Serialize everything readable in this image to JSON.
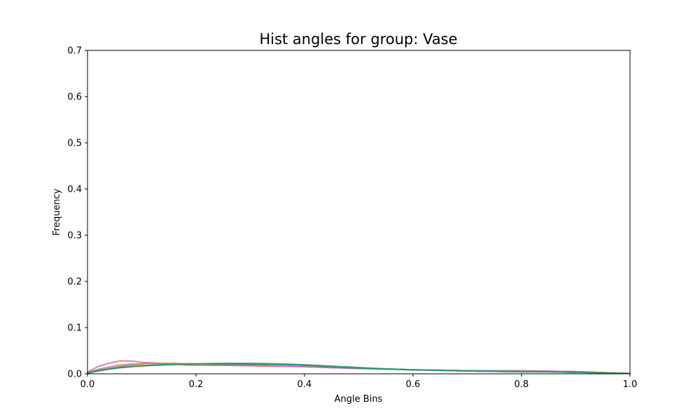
{
  "chart_data": {
    "type": "line",
    "title": "Hist angles for group: Vase",
    "xlabel": "Angle Bins",
    "ylabel": "Frequency",
    "xlim": [
      0.0,
      1.0
    ],
    "ylim": [
      0.0,
      0.7
    ],
    "xticks": [
      "0.0",
      "0.2",
      "0.4",
      "0.6",
      "0.8",
      "1.0"
    ],
    "yticks": [
      "0.0",
      "0.1",
      "0.2",
      "0.3",
      "0.4",
      "0.5",
      "0.6",
      "0.7"
    ],
    "grid": false,
    "x": [
      0.0,
      0.02,
      0.04,
      0.06,
      0.08,
      0.1,
      0.12,
      0.14,
      0.16,
      0.18,
      0.2,
      0.25,
      0.3,
      0.35,
      0.4,
      0.45,
      0.5,
      0.55,
      0.6,
      0.65,
      0.7,
      0.75,
      0.8,
      0.85,
      0.9,
      0.95,
      1.0
    ],
    "series": [
      {
        "color": "#e07080",
        "values": [
          0.004,
          0.016,
          0.023,
          0.028,
          0.028,
          0.025,
          0.024,
          0.023,
          0.021,
          0.019,
          0.018,
          0.018,
          0.017,
          0.016,
          0.015,
          0.013,
          0.012,
          0.01,
          0.009,
          0.008,
          0.007,
          0.007,
          0.007,
          0.006,
          0.005,
          0.003,
          0.001
        ]
      },
      {
        "color": "#c66fd6",
        "values": [
          0.003,
          0.01,
          0.015,
          0.019,
          0.021,
          0.022,
          0.022,
          0.022,
          0.021,
          0.021,
          0.021,
          0.02,
          0.019,
          0.017,
          0.015,
          0.013,
          0.011,
          0.01,
          0.009,
          0.008,
          0.007,
          0.007,
          0.007,
          0.006,
          0.005,
          0.003,
          0.001
        ]
      },
      {
        "color": "#c0a030",
        "values": [
          0.002,
          0.008,
          0.012,
          0.016,
          0.019,
          0.021,
          0.023,
          0.023,
          0.023,
          0.022,
          0.022,
          0.022,
          0.022,
          0.021,
          0.018,
          0.015,
          0.013,
          0.011,
          0.009,
          0.008,
          0.007,
          0.006,
          0.006,
          0.005,
          0.004,
          0.003,
          0.001
        ]
      },
      {
        "color": "#6aa84f",
        "values": [
          0.002,
          0.007,
          0.011,
          0.014,
          0.016,
          0.018,
          0.019,
          0.02,
          0.021,
          0.022,
          0.022,
          0.023,
          0.023,
          0.022,
          0.02,
          0.017,
          0.014,
          0.011,
          0.009,
          0.007,
          0.006,
          0.005,
          0.005,
          0.004,
          0.003,
          0.002,
          0.001
        ]
      },
      {
        "color": "#3aa58a",
        "values": [
          0.002,
          0.006,
          0.01,
          0.013,
          0.015,
          0.017,
          0.018,
          0.019,
          0.02,
          0.021,
          0.021,
          0.022,
          0.022,
          0.021,
          0.019,
          0.016,
          0.013,
          0.011,
          0.009,
          0.007,
          0.006,
          0.005,
          0.004,
          0.004,
          0.003,
          0.002,
          0.001
        ]
      },
      {
        "color": "#2f9fb0",
        "values": [
          0.002,
          0.007,
          0.011,
          0.014,
          0.016,
          0.018,
          0.019,
          0.02,
          0.02,
          0.021,
          0.021,
          0.021,
          0.021,
          0.02,
          0.018,
          0.016,
          0.013,
          0.011,
          0.009,
          0.008,
          0.007,
          0.006,
          0.005,
          0.005,
          0.004,
          0.002,
          0.001
        ]
      },
      {
        "color": "#3b8f5a",
        "values": [
          0.001,
          0.006,
          0.01,
          0.013,
          0.015,
          0.017,
          0.018,
          0.019,
          0.02,
          0.02,
          0.021,
          0.021,
          0.021,
          0.02,
          0.018,
          0.015,
          0.012,
          0.01,
          0.008,
          0.007,
          0.006,
          0.005,
          0.004,
          0.004,
          0.003,
          0.002,
          0.001
        ]
      }
    ]
  }
}
